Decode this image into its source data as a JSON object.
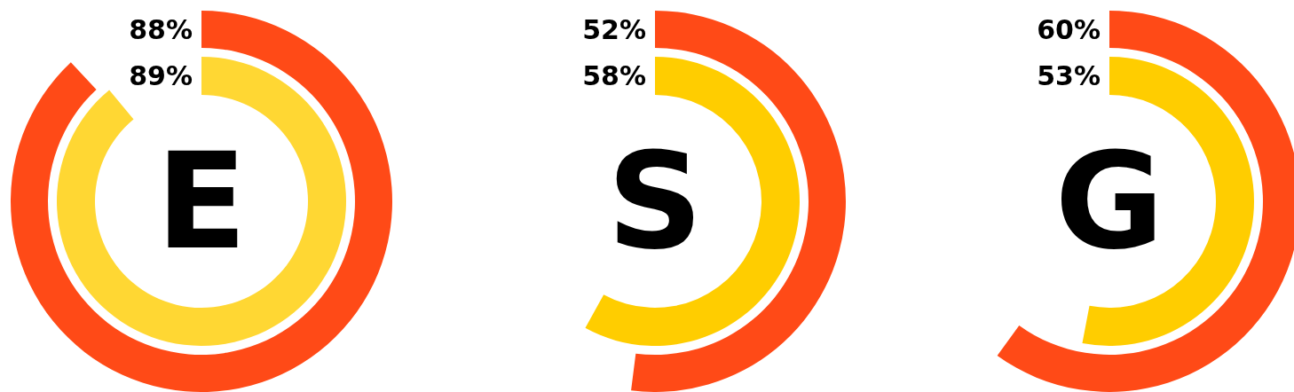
{
  "chart_data": [
    {
      "type": "other",
      "title": "E",
      "values": [
        88,
        89
      ],
      "value_labels": [
        "88%",
        "89%"
      ],
      "colors": [
        "#ff4a17",
        "#ffd733"
      ]
    },
    {
      "type": "other",
      "title": "S",
      "values": [
        52,
        58
      ],
      "value_labels": [
        "52%",
        "58%"
      ],
      "colors": [
        "#ff4a17",
        "#ffcd00"
      ]
    },
    {
      "type": "other",
      "title": "G",
      "values": [
        60,
        53
      ],
      "value_labels": [
        "60%",
        "53%"
      ],
      "colors": [
        "#ff4a17",
        "#ffcd00"
      ]
    }
  ]
}
